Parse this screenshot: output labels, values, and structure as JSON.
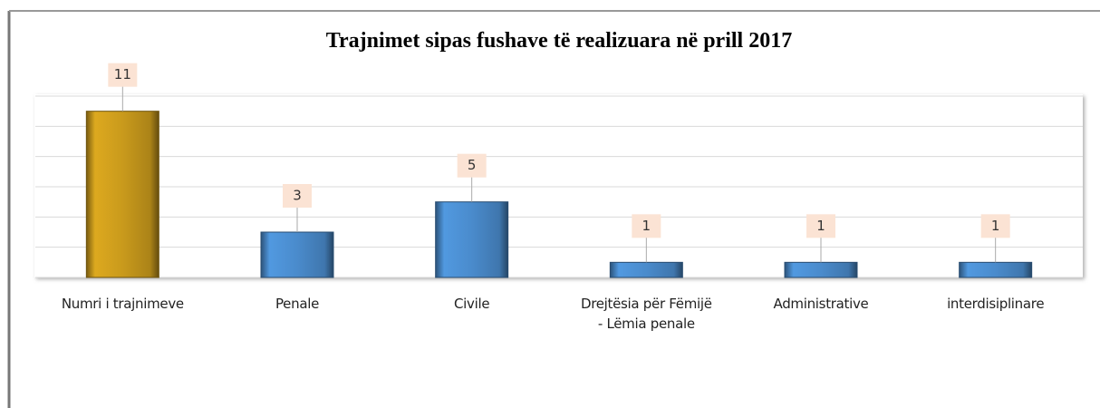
{
  "chart_data": {
    "type": "bar",
    "title": "Trajnimet  sipas fushave të realizuara  në prill  2017",
    "categories": [
      "Numri i trajnimeve",
      "Penale",
      "Civile",
      "Drejtësia për Fëmijë - Lëmia penale",
      "Administrative",
      "interdisiplinare"
    ],
    "values": [
      11,
      3,
      5,
      1,
      1,
      1
    ],
    "colors": [
      "#c99a1c",
      "#4a8bcc",
      "#4a8bcc",
      "#4a8bcc",
      "#4a8bcc",
      "#4a8bcc"
    ],
    "ylim": [
      0,
      12
    ],
    "yticks": [
      0,
      2,
      4,
      6,
      8,
      10,
      12
    ],
    "grid": true
  }
}
